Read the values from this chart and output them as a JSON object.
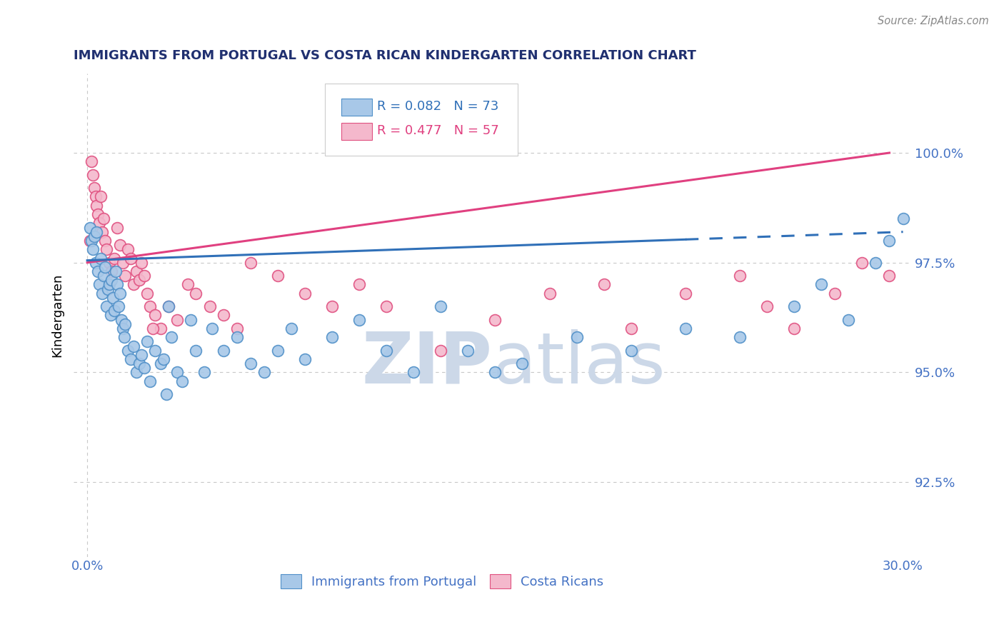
{
  "title": "IMMIGRANTS FROM PORTUGAL VS COSTA RICAN KINDERGARTEN CORRELATION CHART",
  "source": "Source: ZipAtlas.com",
  "ylabel": "Kindergarten",
  "xticklabels": [
    "0.0%",
    "30.0%"
  ],
  "yticklabels": [
    "92.5%",
    "95.0%",
    "97.5%",
    "100.0%"
  ],
  "xlim": [
    0.0,
    30.0
  ],
  "ylim": [
    90.8,
    101.8
  ],
  "yticks": [
    92.5,
    95.0,
    97.5,
    100.0
  ],
  "legend_blue_label": "Immigrants from Portugal",
  "legend_pink_label": "Costa Ricans",
  "legend_r_blue": "R = 0.082",
  "legend_n_blue": "N = 73",
  "legend_r_pink": "R = 0.477",
  "legend_n_pink": "N = 57",
  "blue_color": "#a8c8e8",
  "pink_color": "#f4b8cc",
  "blue_edge_color": "#5090c8",
  "pink_edge_color": "#e05080",
  "blue_line_color": "#3070b8",
  "pink_line_color": "#e04080",
  "title_color": "#203070",
  "axis_color": "#4472c4",
  "grid_color": "#c8c8c8",
  "watermark_color": "#ccd8e8",
  "blue_scatter_x": [
    0.1,
    0.15,
    0.2,
    0.25,
    0.3,
    0.35,
    0.4,
    0.45,
    0.5,
    0.55,
    0.6,
    0.65,
    0.7,
    0.75,
    0.8,
    0.85,
    0.9,
    0.95,
    1.0,
    1.05,
    1.1,
    1.15,
    1.2,
    1.25,
    1.3,
    1.35,
    1.4,
    1.5,
    1.6,
    1.7,
    1.8,
    1.9,
    2.0,
    2.1,
    2.2,
    2.3,
    2.5,
    2.7,
    2.9,
    3.1,
    3.3,
    3.5,
    3.8,
    4.0,
    4.3,
    4.6,
    5.0,
    5.5,
    6.0,
    6.5,
    7.0,
    7.5,
    8.0,
    9.0,
    10.0,
    11.0,
    12.0,
    13.0,
    14.0,
    15.0,
    16.0,
    18.0,
    20.0,
    22.0,
    24.0,
    26.0,
    27.0,
    28.0,
    29.0,
    29.5,
    30.0,
    2.8,
    3.0
  ],
  "blue_scatter_y": [
    98.3,
    98.0,
    97.8,
    98.1,
    97.5,
    98.2,
    97.3,
    97.0,
    97.6,
    96.8,
    97.2,
    97.4,
    96.5,
    96.9,
    97.0,
    96.3,
    97.1,
    96.7,
    96.4,
    97.3,
    97.0,
    96.5,
    96.8,
    96.2,
    96.0,
    95.8,
    96.1,
    95.5,
    95.3,
    95.6,
    95.0,
    95.2,
    95.4,
    95.1,
    95.7,
    94.8,
    95.5,
    95.2,
    94.5,
    95.8,
    95.0,
    94.8,
    96.2,
    95.5,
    95.0,
    96.0,
    95.5,
    95.8,
    95.2,
    95.0,
    95.5,
    96.0,
    95.3,
    95.8,
    96.2,
    95.5,
    95.0,
    96.5,
    95.5,
    95.0,
    95.2,
    95.8,
    95.5,
    96.0,
    95.8,
    96.5,
    97.0,
    96.2,
    97.5,
    98.0,
    98.5,
    95.3,
    96.5
  ],
  "pink_scatter_x": [
    0.1,
    0.15,
    0.2,
    0.25,
    0.3,
    0.35,
    0.4,
    0.45,
    0.5,
    0.55,
    0.6,
    0.65,
    0.7,
    0.8,
    0.9,
    1.0,
    1.1,
    1.2,
    1.3,
    1.4,
    1.5,
    1.6,
    1.7,
    1.8,
    1.9,
    2.0,
    2.1,
    2.2,
    2.3,
    2.5,
    2.7,
    3.0,
    3.3,
    3.7,
    4.0,
    4.5,
    5.0,
    5.5,
    6.0,
    7.0,
    8.0,
    9.0,
    10.0,
    11.0,
    13.0,
    15.0,
    17.0,
    19.0,
    20.0,
    22.0,
    24.0,
    25.0,
    26.0,
    27.5,
    28.5,
    29.5,
    2.4
  ],
  "pink_scatter_y": [
    98.0,
    99.8,
    99.5,
    99.2,
    99.0,
    98.8,
    98.6,
    98.4,
    99.0,
    98.2,
    98.5,
    98.0,
    97.8,
    97.5,
    97.3,
    97.6,
    98.3,
    97.9,
    97.5,
    97.2,
    97.8,
    97.6,
    97.0,
    97.3,
    97.1,
    97.5,
    97.2,
    96.8,
    96.5,
    96.3,
    96.0,
    96.5,
    96.2,
    97.0,
    96.8,
    96.5,
    96.3,
    96.0,
    97.5,
    97.2,
    96.8,
    96.5,
    97.0,
    96.5,
    95.5,
    96.2,
    96.8,
    97.0,
    96.0,
    96.8,
    97.2,
    96.5,
    96.0,
    96.8,
    97.5,
    97.2,
    96.0
  ],
  "blue_line_x0": 0.0,
  "blue_line_x1": 30.0,
  "blue_line_y0": 97.55,
  "blue_line_y1": 98.2,
  "blue_dash_start_x": 22.0,
  "pink_line_x0": 0.0,
  "pink_line_x1": 29.5,
  "pink_line_y0": 97.5,
  "pink_line_y1": 100.0
}
